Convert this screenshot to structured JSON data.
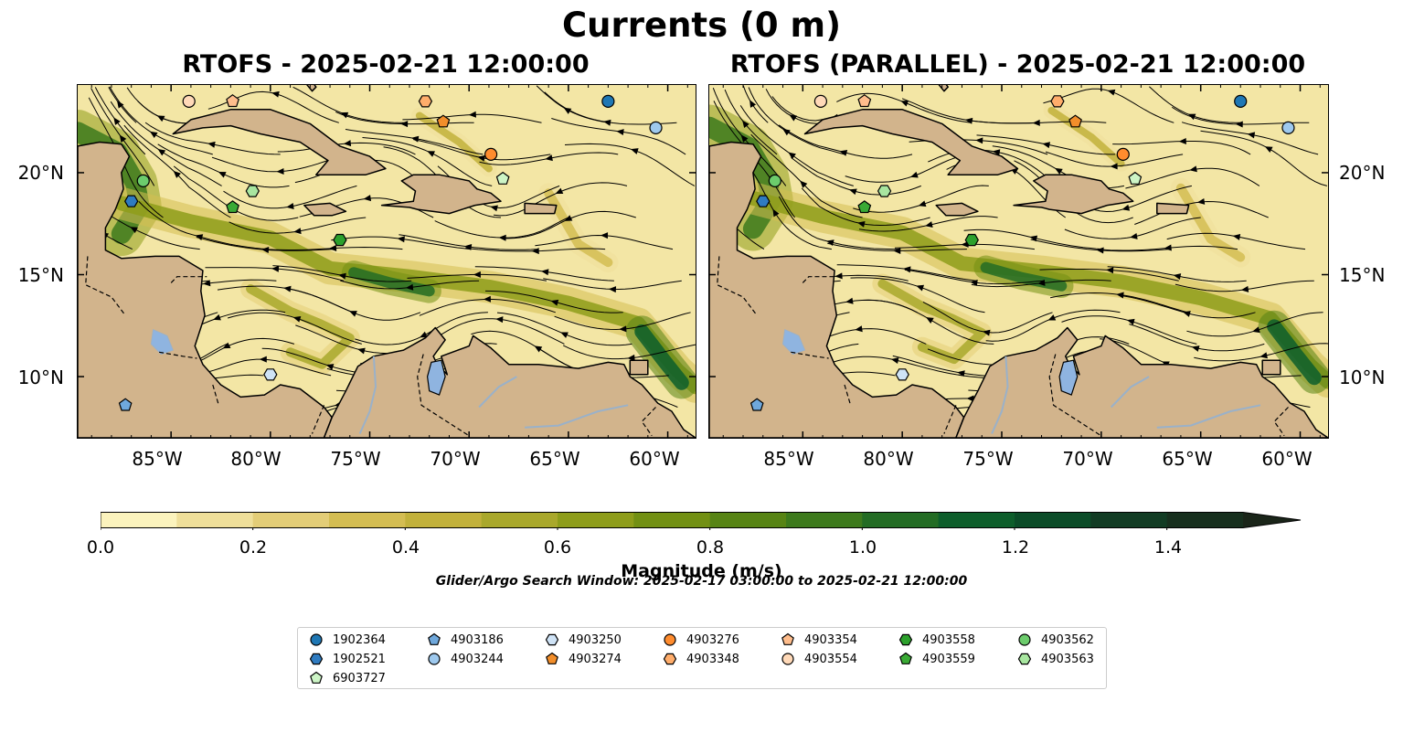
{
  "title": "Currents (0 m)",
  "panels": [
    {
      "title": "RTOFS - 2025-02-21 12:00:00"
    },
    {
      "title": "RTOFS (PARALLEL) - 2025-02-21 12:00:00"
    }
  ],
  "axes": {
    "lat_ticks": [
      "20°N",
      "15°N",
      "10°N"
    ],
    "lon_ticks": [
      "85°W",
      "80°W",
      "75°W",
      "70°W",
      "65°W",
      "60°W"
    ],
    "extent": {
      "lon_min": -89.7,
      "lon_max": -58.6,
      "lat_min": 7.0,
      "lat_max": 24.3
    }
  },
  "colorbar": {
    "label": "Magnitude (m/s)",
    "ticks": [
      "0.0",
      "0.2",
      "0.4",
      "0.6",
      "0.8",
      "1.0",
      "1.2",
      "1.4"
    ],
    "range": [
      0,
      1.5
    ],
    "extend": "max",
    "colors": [
      "#fbf3bd",
      "#efdf9a",
      "#e3cd77",
      "#d4bd52",
      "#c2b13b",
      "#a9a82b",
      "#8e9d1a",
      "#729013",
      "#578414",
      "#3d7a1c",
      "#236c24",
      "#0d5e2b",
      "#0b4c28",
      "#123c24",
      "#172f1e",
      "#1a2519"
    ]
  },
  "search_window": "Glider/Argo Search Window: 2025-02-17 03:00:00 to 2025-02-21 12:00:00",
  "colors": {
    "land": "#d2b48c",
    "lake": "#8fb4e0",
    "river": "#9ab1c9",
    "ocean_base": "#f3e6a5"
  },
  "floats": [
    {
      "id": "1902364",
      "marker": "circle",
      "color": "#1f77b4",
      "lon": -63.0,
      "lat": 23.5
    },
    {
      "id": "1902521",
      "marker": "hexagon",
      "color": "#2f7bc0",
      "lon": -87.0,
      "lat": 18.6
    },
    {
      "id": "4903186",
      "marker": "pentagon",
      "color": "#6fa8dc",
      "lon": -87.3,
      "lat": 8.6
    },
    {
      "id": "4903244",
      "marker": "circle",
      "color": "#9ec9ee",
      "lon": -60.6,
      "lat": 22.2
    },
    {
      "id": "4903250",
      "marker": "hexagon",
      "color": "#cfe3f6",
      "lon": -80.0,
      "lat": 10.1
    },
    {
      "id": "4903274",
      "marker": "pentagon",
      "color": "#f28e2b",
      "lon": -71.3,
      "lat": 22.5
    },
    {
      "id": "4903276",
      "marker": "circle",
      "color": "#ff8c2e",
      "lon": -68.9,
      "lat": 20.9
    },
    {
      "id": "4903348",
      "marker": "hexagon",
      "color": "#ffad6b",
      "lon": -72.2,
      "lat": 23.5
    },
    {
      "id": "4903354",
      "marker": "pentagon",
      "color": "#ffbd8c",
      "lon": -81.9,
      "lat": 23.5
    },
    {
      "id": "4903554",
      "marker": "circle",
      "color": "#ffd9b8",
      "lon": -84.1,
      "lat": 23.5
    },
    {
      "id": "4903558",
      "marker": "hexagon",
      "color": "#2ca02c",
      "lon": -76.5,
      "lat": 16.7
    },
    {
      "id": "4903559",
      "marker": "pentagon",
      "color": "#3aaa35",
      "lon": -81.9,
      "lat": 18.3
    },
    {
      "id": "4903562",
      "marker": "circle",
      "color": "#6ccc6c",
      "lon": -86.4,
      "lat": 19.6
    },
    {
      "id": "4903563",
      "marker": "hexagon",
      "color": "#a8e6a0",
      "lon": -80.9,
      "lat": 19.1
    },
    {
      "id": "6903727",
      "marker": "pentagon",
      "color": "#cdf5c6",
      "lon": -68.3,
      "lat": 19.7
    }
  ]
}
